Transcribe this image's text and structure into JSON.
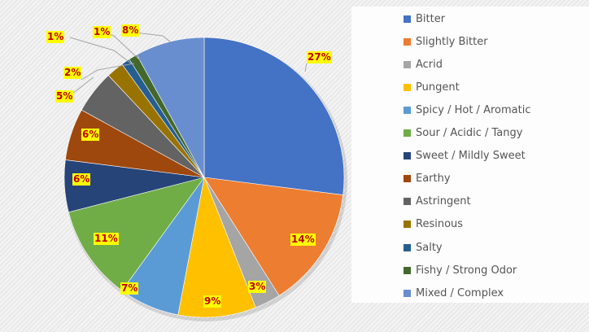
{
  "chart_data": {
    "type": "pie",
    "categories": [
      "Bitter",
      "Slightly Bitter",
      "Acrid",
      "Pungent",
      "Spicy / Hot / Aromatic",
      "Sour / Acidic / Tangy",
      "Sweet / Mildly Sweet",
      "Earthy",
      "Astringent",
      "Resinous",
      "Salty",
      "Fishy / Strong Odor",
      "Mixed / Complex"
    ],
    "values": [
      27,
      14,
      3,
      9,
      7,
      11,
      6,
      6,
      5,
      2,
      1,
      1,
      8
    ],
    "data_labels": [
      "27%",
      "14%",
      "3%",
      "9%",
      "7%",
      "11%",
      "6%",
      "6%",
      "5%",
      "2%",
      "1%",
      "1%",
      "8%"
    ],
    "colors": [
      "#4472c4",
      "#ed7d31",
      "#a5a5a5",
      "#ffc000",
      "#5b9bd5",
      "#70ad47",
      "#264478",
      "#9e480e",
      "#636363",
      "#997300",
      "#255e91",
      "#43682b",
      "#698ed0"
    ],
    "legend_position": "right"
  }
}
